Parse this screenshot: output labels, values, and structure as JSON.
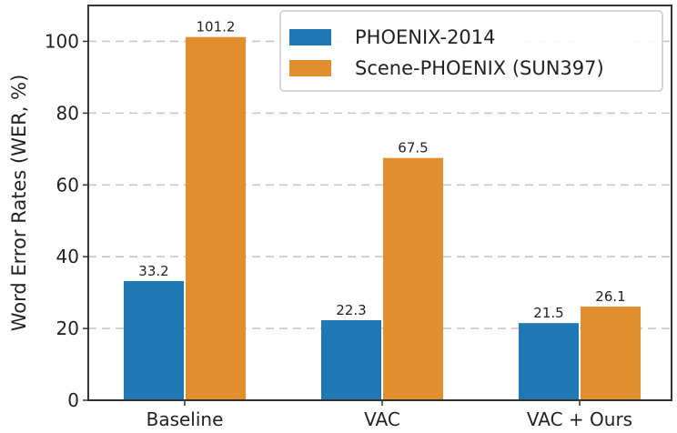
{
  "chart_data": {
    "type": "bar",
    "title": "",
    "xlabel": "",
    "ylabel": "Word Error Rates (WER, %)",
    "categories": [
      "Baseline",
      "VAC",
      "VAC + Ours"
    ],
    "series": [
      {
        "name": "PHOENIX-2014",
        "color": "#1f77b4",
        "values": [
          33.2,
          22.3,
          21.5
        ],
        "labels": [
          "33.2",
          "22.3",
          "21.5"
        ]
      },
      {
        "name": "Scene-PHOENIX (SUN397)",
        "color": "#e08e2e",
        "values": [
          101.2,
          67.5,
          26.1
        ],
        "labels": [
          "101.2",
          "67.5",
          "26.1"
        ]
      }
    ],
    "ylim": [
      0,
      110
    ],
    "yticks": [
      "0",
      "20",
      "40",
      "60",
      "80",
      "100"
    ],
    "grid": "horizontal dashed",
    "legend": "top-right"
  }
}
